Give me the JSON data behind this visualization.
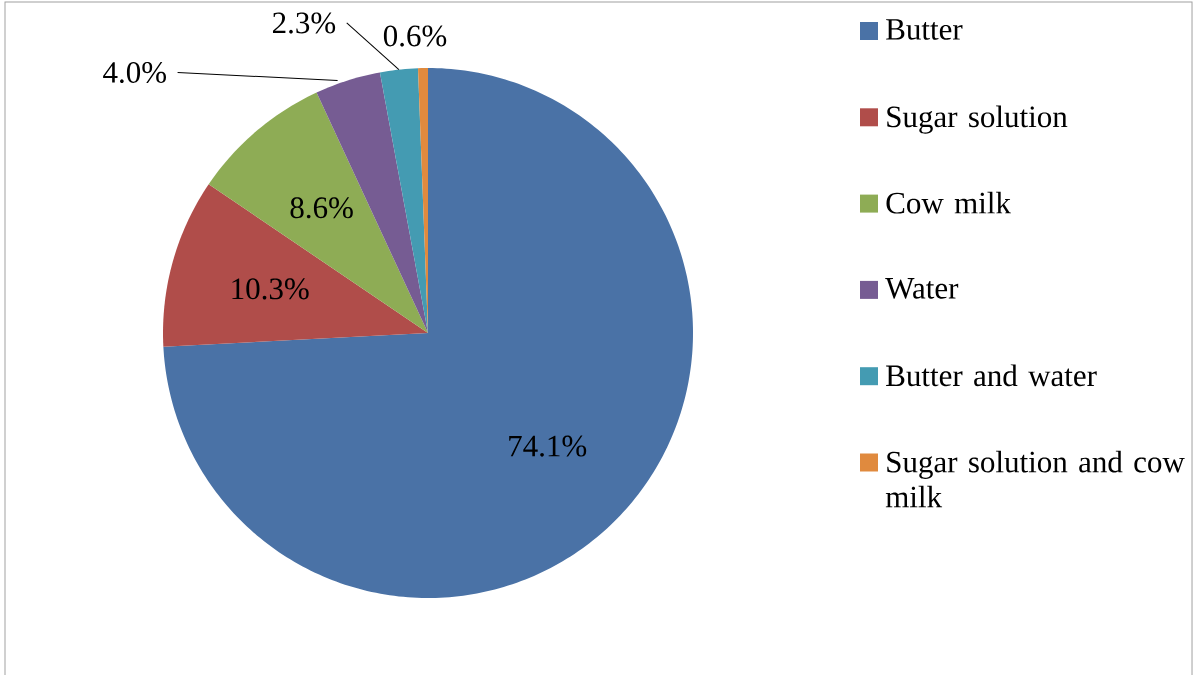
{
  "chart_data": {
    "type": "pie",
    "categories": [
      "Butter",
      "Sugar solution",
      "Cow milk",
      "Water",
      "Butter and water",
      "Sugar solution and cow milk"
    ],
    "values": [
      74.1,
      10.3,
      8.6,
      4.0,
      2.3,
      0.6
    ],
    "colors": [
      "#4a72a6",
      "#b04d4a",
      "#8eac55",
      "#765c93",
      "#449bb2",
      "#e08a3e"
    ],
    "value_labels": [
      "74.1%",
      "10.3%",
      "8.6%",
      "4.0%",
      "2.3%",
      "0.6%"
    ],
    "legend": "right"
  }
}
